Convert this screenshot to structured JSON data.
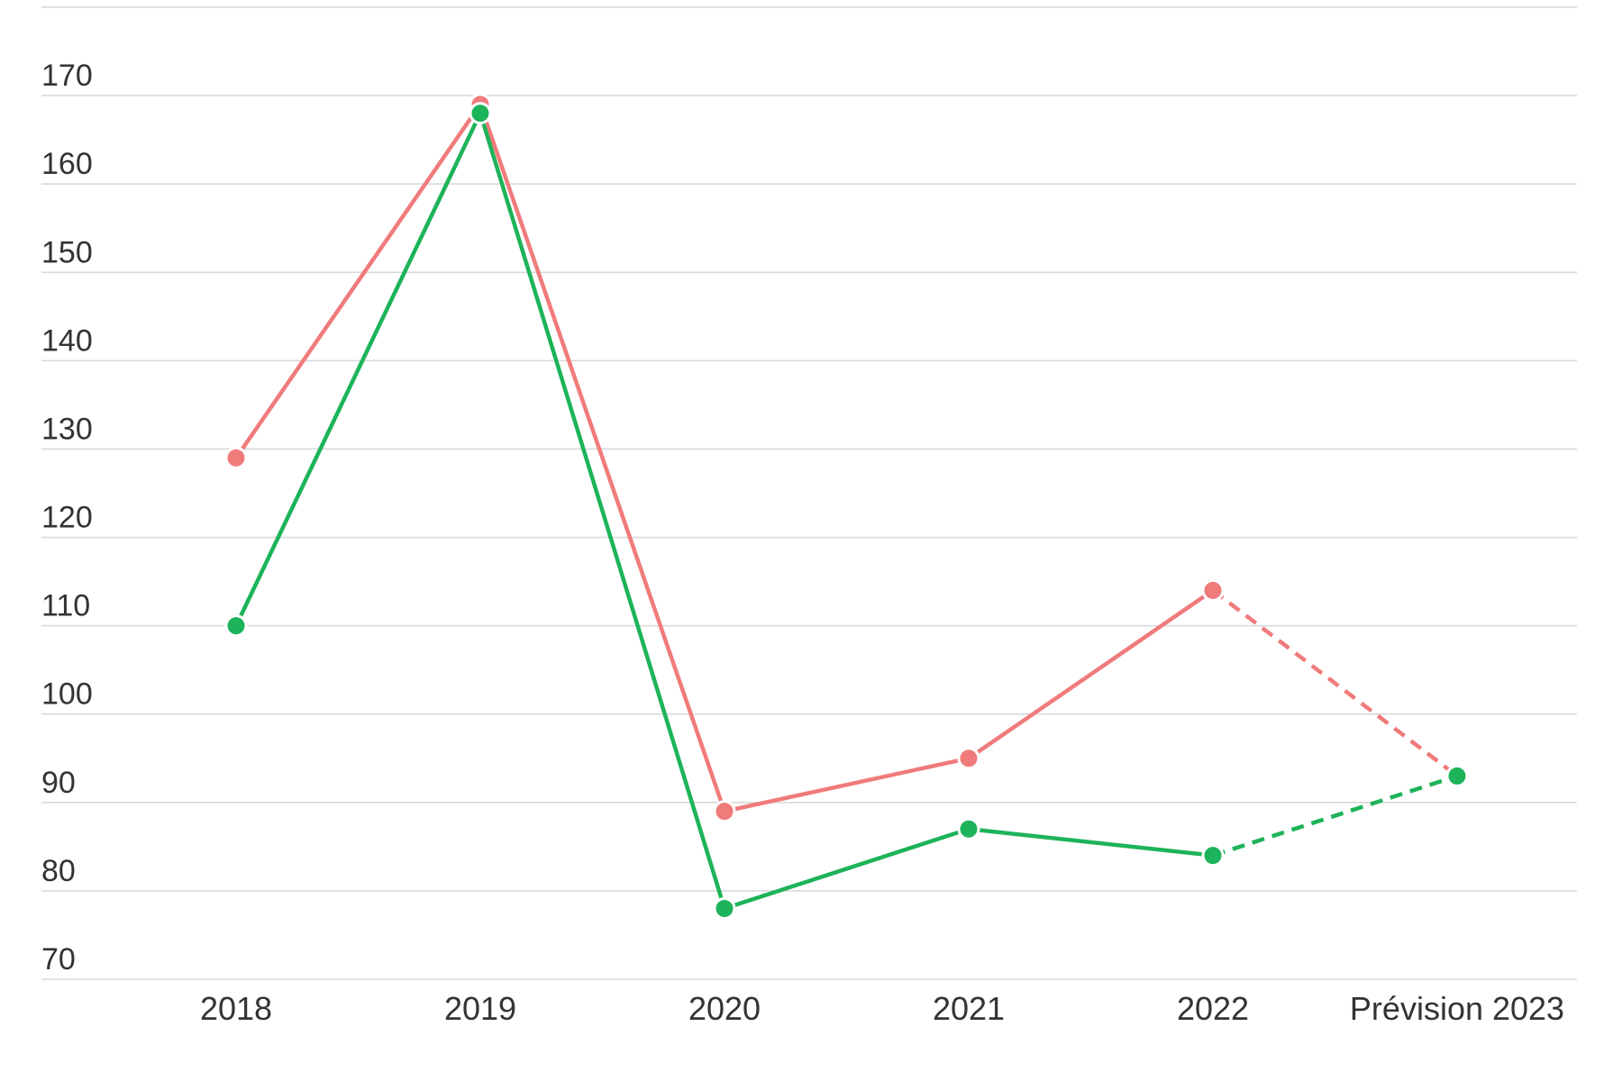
{
  "chart_data": {
    "type": "line",
    "title": "",
    "xlabel": "",
    "ylabel": "",
    "categories": [
      "2018",
      "2019",
      "2020",
      "2021",
      "2022",
      "Prévision 2023"
    ],
    "y_ticks": [
      70,
      80,
      90,
      100,
      110,
      120,
      130,
      140,
      150,
      160,
      170
    ],
    "ylim": [
      70,
      180
    ],
    "grid": true,
    "legend": "bottom, cut off",
    "forecast_from_category": "2022",
    "series": [
      {
        "color": "#f07b7b",
        "values": [
          129,
          169,
          89,
          95,
          114,
          93
        ]
      },
      {
        "color": "#1db35a",
        "values": [
          110,
          168,
          78,
          87,
          84,
          93
        ]
      }
    ]
  }
}
